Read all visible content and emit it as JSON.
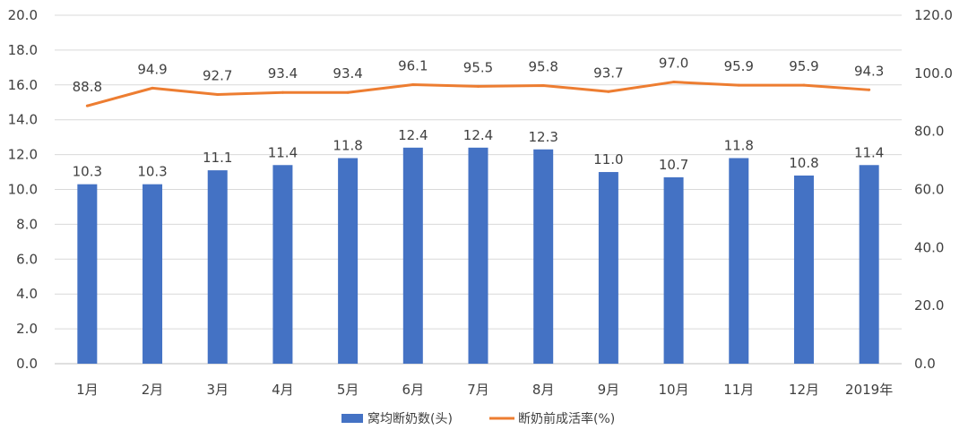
{
  "chart_data": {
    "type": "bar",
    "categories": [
      "1月",
      "2月",
      "3月",
      "4月",
      "5月",
      "6月",
      "7月",
      "8月",
      "9月",
      "10月",
      "11月",
      "12月",
      "2019年"
    ],
    "series": [
      {
        "name": "窝均断奶数(头)",
        "type": "bar",
        "axis": "left",
        "color": "#4472C4",
        "values": [
          10.3,
          10.3,
          11.1,
          11.4,
          11.8,
          12.4,
          12.4,
          12.3,
          11.0,
          10.7,
          11.8,
          10.8,
          11.4
        ]
      },
      {
        "name": "断奶前成活率(%)",
        "type": "line",
        "axis": "right",
        "color": "#ED7D31",
        "values": [
          88.8,
          94.9,
          92.7,
          93.4,
          93.4,
          96.1,
          95.5,
          95.8,
          93.7,
          97.0,
          95.9,
          95.9,
          94.3
        ]
      }
    ],
    "y_left": {
      "lim": [
        0,
        20
      ],
      "ticks": [
        "0.0",
        "2.0",
        "4.0",
        "6.0",
        "8.0",
        "10.0",
        "12.0",
        "14.0",
        "16.0",
        "18.0",
        "20.0"
      ]
    },
    "y_right": {
      "lim": [
        0,
        120
      ],
      "ticks": [
        "0.0",
        "20.0",
        "40.0",
        "60.0",
        "80.0",
        "100.0",
        "120.0"
      ]
    },
    "grid": true,
    "legend": "bottom-center"
  }
}
